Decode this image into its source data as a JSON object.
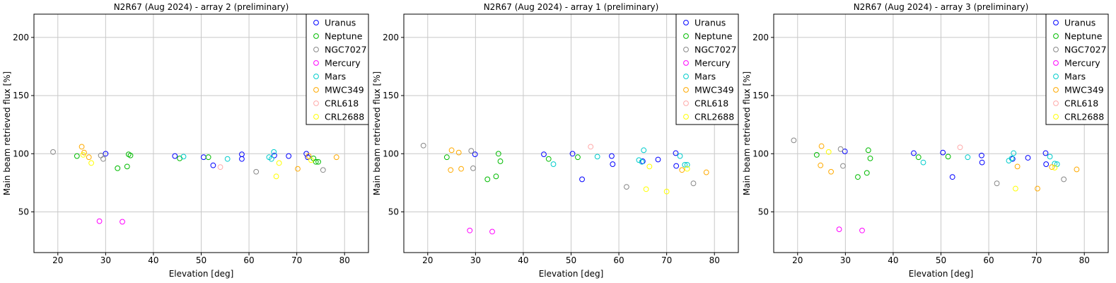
{
  "chart_data": [
    {
      "type": "scatter",
      "title": "N2R67 (Aug 2024) - array 2 (preliminary)",
      "xlabel": "Elevation [deg]",
      "ylabel": "Main beam retrieved flux [%]",
      "xlim": [
        15,
        85
      ],
      "ylim": [
        15,
        220
      ],
      "xticks": [
        20,
        30,
        40,
        50,
        60,
        70,
        80
      ],
      "yticks": [
        50,
        100,
        150,
        200
      ],
      "grid": true,
      "legend_position": "top-right",
      "series": [
        {
          "name": "Uranus",
          "color": "#0000ff",
          "points": [
            [
              30,
              100
            ],
            [
              44.5,
              98
            ],
            [
              50.5,
              97
            ],
            [
              52.5,
              90
            ],
            [
              58.5,
              99.5
            ],
            [
              58.5,
              95.5
            ],
            [
              65.3,
              98.5
            ],
            [
              68.3,
              98
            ],
            [
              72,
              100
            ],
            [
              72.3,
              97
            ]
          ]
        },
        {
          "name": "Neptune",
          "color": "#00bb00",
          "points": [
            [
              24,
              98
            ],
            [
              32.5,
              87.5
            ],
            [
              34.5,
              89
            ],
            [
              34.8,
              99.5
            ],
            [
              35.2,
              98.5
            ],
            [
              45.5,
              96
            ],
            [
              51.5,
              97
            ],
            [
              73.5,
              96
            ],
            [
              74,
              93
            ],
            [
              74.5,
              93
            ]
          ]
        },
        {
          "name": "NGC7027",
          "color": "#888888",
          "points": [
            [
              19,
              101.5
            ],
            [
              29,
              98.5
            ],
            [
              29.5,
              95.5
            ],
            [
              61.5,
              84.5
            ],
            [
              75.5,
              86
            ]
          ]
        },
        {
          "name": "Mercury",
          "color": "#ff00ff",
          "points": [
            [
              28.7,
              42
            ],
            [
              33.5,
              41.5
            ]
          ]
        },
        {
          "name": "Mars",
          "color": "#00cccc",
          "points": [
            [
              46.3,
              97.5
            ],
            [
              55.5,
              95.5
            ],
            [
              64.2,
              97
            ],
            [
              64.7,
              95.5
            ],
            [
              65.2,
              101.5
            ]
          ]
        },
        {
          "name": "MWC349",
          "color": "#ffaa00",
          "points": [
            [
              25,
              106
            ],
            [
              25.5,
              101
            ],
            [
              26.5,
              97
            ],
            [
              70.2,
              87
            ],
            [
              72.5,
              98
            ],
            [
              78.3,
              97
            ]
          ]
        },
        {
          "name": "CRL618",
          "color": "#ffaaaa",
          "points": [
            [
              54,
              88.5
            ]
          ]
        },
        {
          "name": "CRL2688",
          "color": "#ffff00",
          "points": [
            [
              25.3,
              99
            ],
            [
              27,
              92
            ],
            [
              65.7,
              80.5
            ],
            [
              66.3,
              92
            ],
            [
              73,
              94.5
            ]
          ]
        }
      ]
    },
    {
      "type": "scatter",
      "title": "N2R67 (Aug 2024) - array 1 (preliminary)",
      "xlabel": "Elevation [deg]",
      "ylabel": "Main beam retrieved flux [%]",
      "xlim": [
        15,
        85
      ],
      "ylim": [
        15,
        220
      ],
      "xticks": [
        20,
        30,
        40,
        50,
        60,
        70,
        80
      ],
      "yticks": [
        50,
        100,
        150,
        200
      ],
      "grid": true,
      "legend_position": "top-right",
      "series": [
        {
          "name": "Uranus",
          "color": "#0000ff",
          "points": [
            [
              29.9,
              99.5
            ],
            [
              44.3,
              99.5
            ],
            [
              50.3,
              100
            ],
            [
              52.3,
              78
            ],
            [
              58.5,
              98
            ],
            [
              58.7,
              91
            ],
            [
              65,
              93.5
            ],
            [
              68.2,
              95
            ],
            [
              71.9,
              100.5
            ],
            [
              72,
              89.5
            ]
          ]
        },
        {
          "name": "Neptune",
          "color": "#00bb00",
          "points": [
            [
              24,
              97
            ],
            [
              32.5,
              78
            ],
            [
              34.3,
              80.5
            ],
            [
              34.8,
              100
            ],
            [
              35.2,
              93.5
            ],
            [
              45.3,
              95.5
            ],
            [
              51.4,
              97
            ]
          ]
        },
        {
          "name": "NGC7027",
          "color": "#888888",
          "points": [
            [
              19.1,
              107
            ],
            [
              29.1,
              102.5
            ],
            [
              29.5,
              87.5
            ],
            [
              61.6,
              71.5
            ],
            [
              75.6,
              74.5
            ]
          ]
        },
        {
          "name": "Mercury",
          "color": "#ff00ff",
          "points": [
            [
              28.8,
              34
            ],
            [
              33.5,
              33
            ]
          ]
        },
        {
          "name": "Mars",
          "color": "#00cccc",
          "points": [
            [
              46.3,
              91
            ],
            [
              55.5,
              97.5
            ],
            [
              64.2,
              94.5
            ],
            [
              64.8,
              93
            ],
            [
              65.2,
              103
            ],
            [
              72.8,
              98
            ],
            [
              73.8,
              90.5
            ],
            [
              74.3,
              90.5
            ]
          ]
        },
        {
          "name": "MWC349",
          "color": "#ffaa00",
          "points": [
            [
              25,
              103
            ],
            [
              24.8,
              86
            ],
            [
              26.5,
              101
            ],
            [
              27,
              87
            ],
            [
              73.2,
              86
            ],
            [
              78.3,
              84
            ]
          ]
        },
        {
          "name": "CRL618",
          "color": "#ffaaaa",
          "points": [
            [
              54.1,
              106
            ]
          ]
        },
        {
          "name": "CRL2688",
          "color": "#ffff00",
          "points": [
            [
              65.7,
              69.5
            ],
            [
              66.4,
              89
            ],
            [
              70,
              67.5
            ],
            [
              74.3,
              87
            ]
          ]
        }
      ]
    },
    {
      "type": "scatter",
      "title": "N2R67 (Aug 2024) - array 3 (preliminary)",
      "xlabel": "Elevation [deg]",
      "ylabel": "Main beam retrieved flux [%]",
      "xlim": [
        15,
        85
      ],
      "ylim": [
        15,
        220
      ],
      "xticks": [
        20,
        30,
        40,
        50,
        60,
        70,
        80
      ],
      "yticks": [
        50,
        100,
        150,
        200
      ],
      "grid": true,
      "legend_position": "top-right",
      "series": [
        {
          "name": "Uranus",
          "color": "#0000ff",
          "points": [
            [
              29.9,
              102
            ],
            [
              44.3,
              100.5
            ],
            [
              50.4,
              101
            ],
            [
              52.4,
              80
            ],
            [
              58.5,
              98.5
            ],
            [
              58.6,
              92.5
            ],
            [
              65,
              95.5
            ],
            [
              68.2,
              96.5
            ],
            [
              71.9,
              100.5
            ],
            [
              72,
              91
            ]
          ]
        },
        {
          "name": "Neptune",
          "color": "#00bb00",
          "points": [
            [
              24,
              99
            ],
            [
              32.6,
              80
            ],
            [
              34.5,
              83.5
            ],
            [
              34.8,
              103
            ],
            [
              35.2,
              96
            ],
            [
              45.3,
              97
            ],
            [
              51.5,
              97.5
            ]
          ]
        },
        {
          "name": "NGC7027",
          "color": "#888888",
          "points": [
            [
              19.2,
              111.5
            ],
            [
              29,
              104
            ],
            [
              29.5,
              89.5
            ],
            [
              61.7,
              74.5
            ],
            [
              75.7,
              78
            ]
          ]
        },
        {
          "name": "Mercury",
          "color": "#ff00ff",
          "points": [
            [
              28.7,
              35
            ],
            [
              33.5,
              34
            ]
          ]
        },
        {
          "name": "Mars",
          "color": "#00cccc",
          "points": [
            [
              46.3,
              92.5
            ],
            [
              55.6,
              97
            ],
            [
              64.2,
              94
            ],
            [
              64.8,
              96
            ],
            [
              65.2,
              100.5
            ],
            [
              72.8,
              97.5
            ],
            [
              73.8,
              91.5
            ],
            [
              74.3,
              91
            ]
          ]
        },
        {
          "name": "MWC349",
          "color": "#ffaa00",
          "points": [
            [
              25,
              106.5
            ],
            [
              24.8,
              90
            ],
            [
              27,
              84.5
            ],
            [
              66,
              89
            ],
            [
              70.2,
              70
            ],
            [
              73.2,
              88.5
            ],
            [
              78.4,
              86.5
            ]
          ]
        },
        {
          "name": "CRL618",
          "color": "#ffaaaa",
          "points": [
            [
              54,
              105.5
            ]
          ]
        },
        {
          "name": "CRL2688",
          "color": "#ffff00",
          "points": [
            [
              26.5,
              101.5
            ],
            [
              65.6,
              70
            ],
            [
              73.8,
              88
            ]
          ]
        }
      ]
    }
  ]
}
